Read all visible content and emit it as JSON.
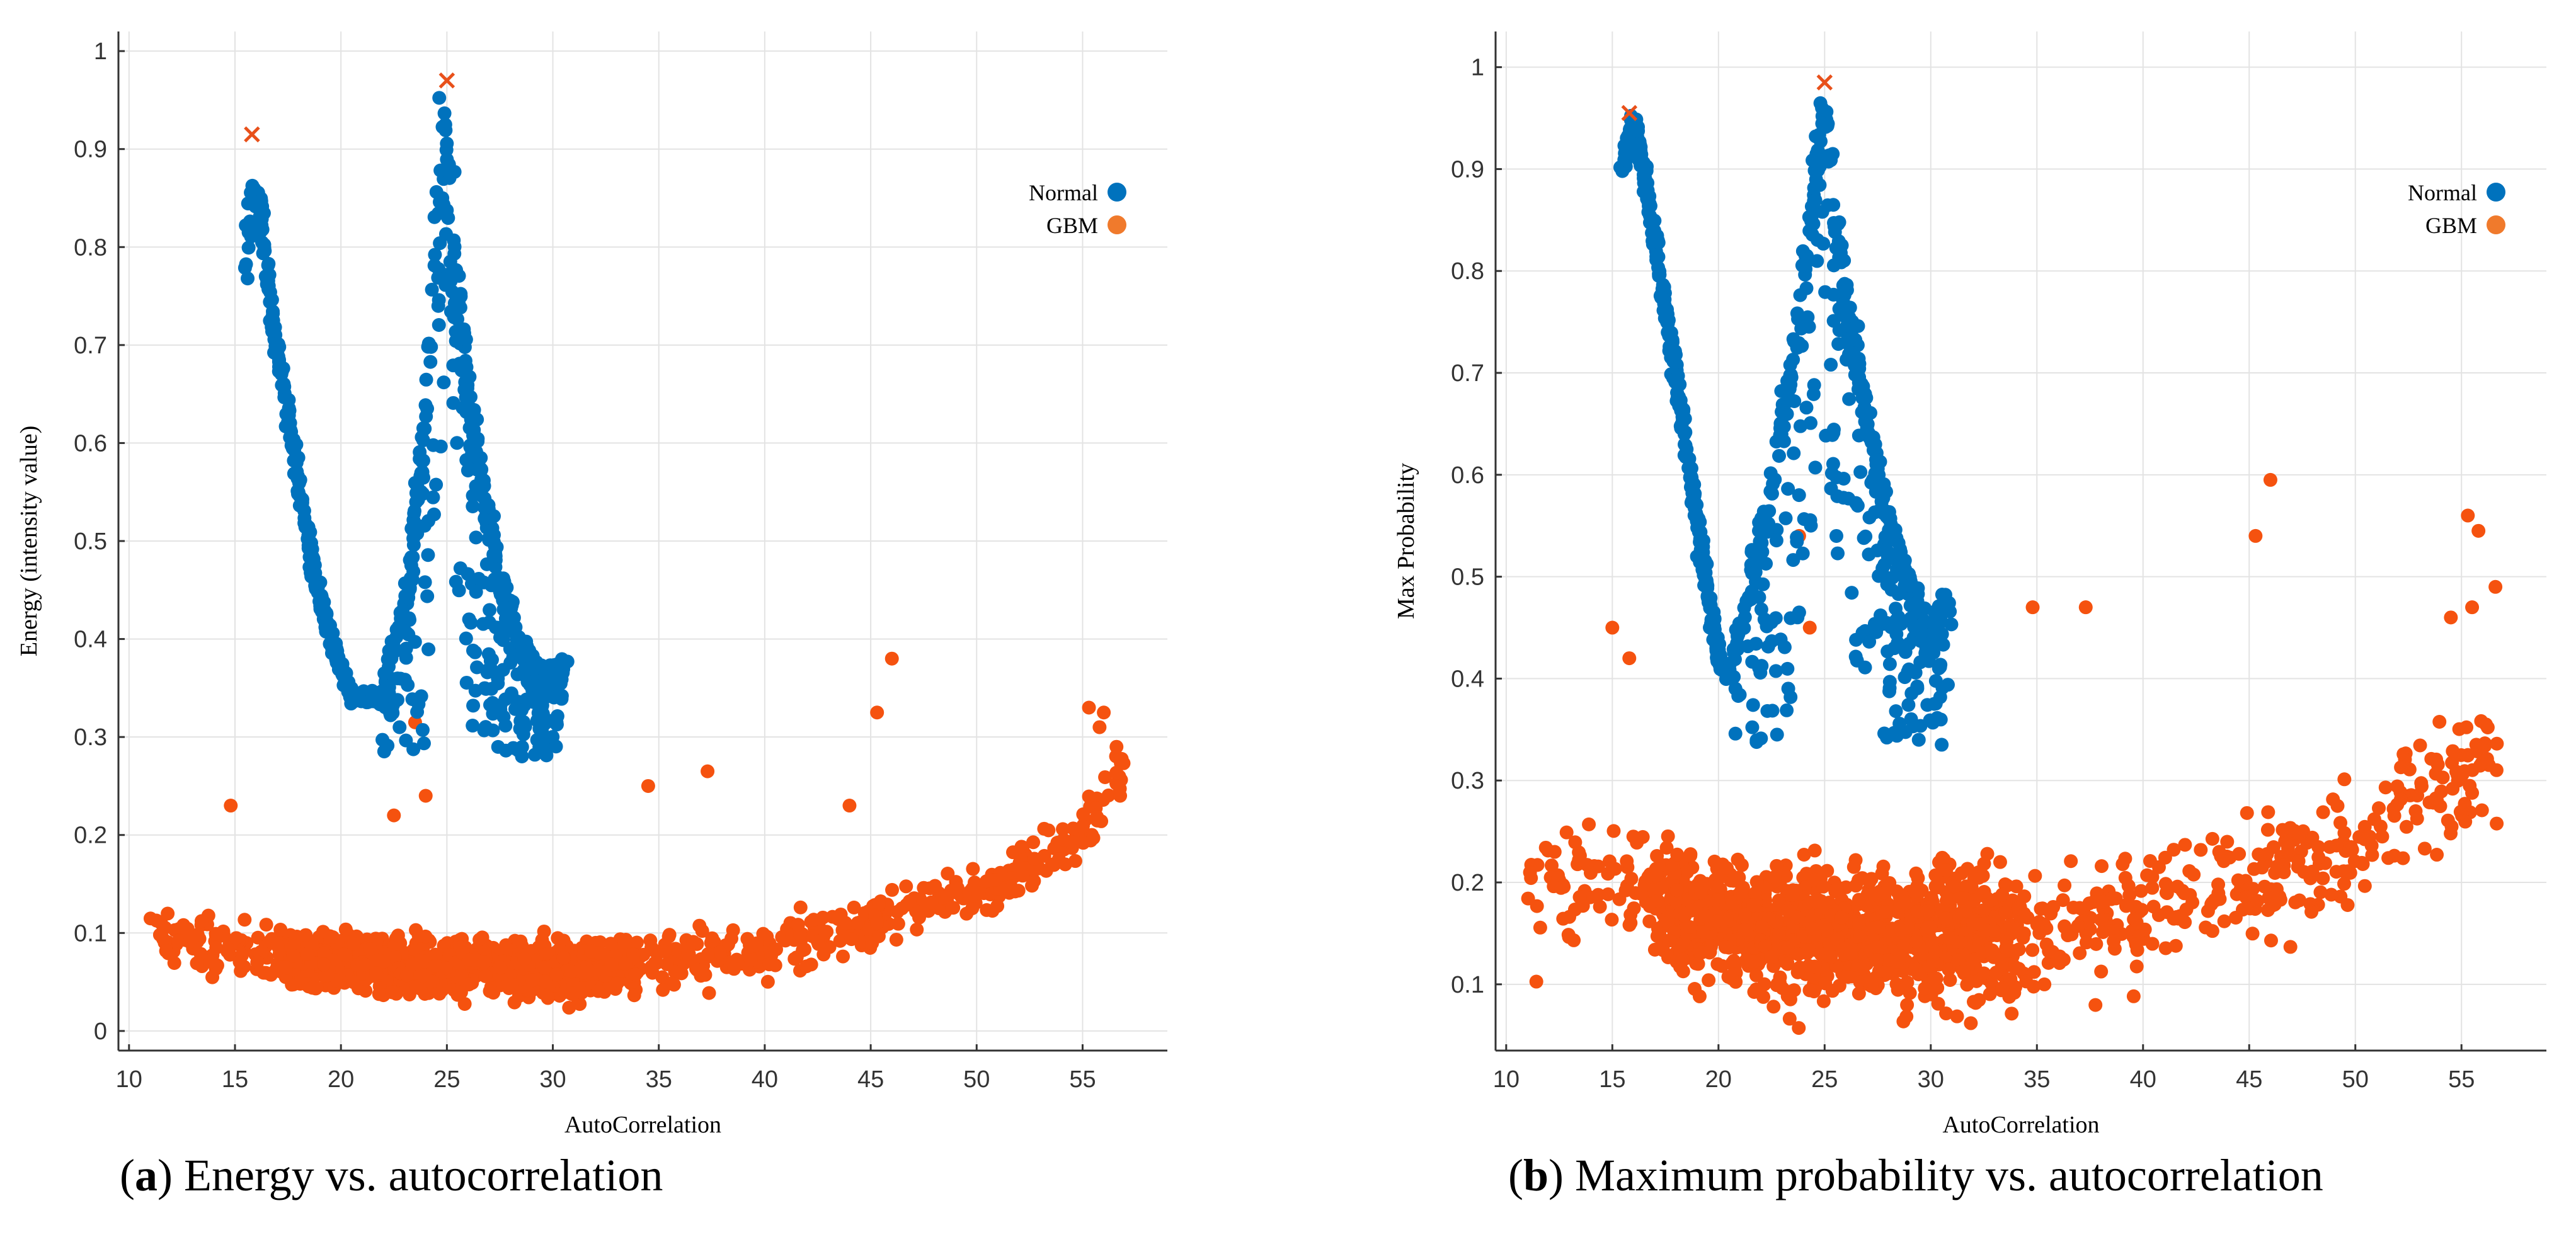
{
  "chart_data": [
    {
      "type": "scatter",
      "panel": "a",
      "xlabel": "AutoCorrelation",
      "ylabel": "Energy (intensity value)",
      "xlim": [
        9.5,
        59
      ],
      "ylim": [
        -0.02,
        1.02
      ],
      "xticks": [
        10,
        15,
        20,
        25,
        30,
        35,
        40,
        45,
        50,
        55
      ],
      "yticks": [
        0,
        0.1,
        0.2,
        0.3,
        0.4,
        0.5,
        0.6,
        0.7,
        0.8,
        0.9,
        1
      ],
      "ytick_labels": [
        "0",
        "0.1",
        "0.2",
        "0.3",
        "0.4",
        "0.5",
        "0.6",
        "0.7",
        "0.8",
        "0.9",
        "1"
      ],
      "grid": true,
      "legend_position": "top-right",
      "legend": [
        {
          "name": "Normal",
          "color": "#0072BD"
        },
        {
          "name": "GBM",
          "color": "#F07A2C"
        }
      ],
      "normal_shape": {
        "left_branch": [
          [
            15.5,
            0.76
          ],
          [
            15.8,
            0.86
          ],
          [
            16.2,
            0.84
          ],
          [
            16.8,
            0.72
          ],
          [
            17.5,
            0.63
          ],
          [
            18.2,
            0.53
          ],
          [
            19.0,
            0.44
          ],
          [
            19.8,
            0.38
          ],
          [
            20.5,
            0.34
          ],
          [
            21.5,
            0.34
          ],
          [
            22.5,
            0.33
          ]
        ],
        "peak": [
          [
            22.0,
            0.36
          ],
          [
            23.0,
            0.44
          ],
          [
            23.8,
            0.58
          ],
          [
            24.4,
            0.75
          ],
          [
            24.9,
            0.96
          ],
          [
            25.4,
            0.8
          ],
          [
            26.0,
            0.66
          ],
          [
            26.8,
            0.55
          ],
          [
            27.5,
            0.47
          ],
          [
            28.5,
            0.4
          ],
          [
            29.5,
            0.37
          ],
          [
            30.5,
            0.38
          ]
        ],
        "peak_spread": 0.3
      },
      "gbm_cloud": {
        "x_range": [
          11,
          57
        ],
        "baseline": [
          [
            11,
            0.1
          ],
          [
            15,
            0.08
          ],
          [
            20,
            0.07
          ],
          [
            25,
            0.065
          ],
          [
            30,
            0.06
          ],
          [
            35,
            0.07
          ],
          [
            40,
            0.085
          ],
          [
            45,
            0.11
          ],
          [
            50,
            0.14
          ],
          [
            53,
            0.17
          ],
          [
            55,
            0.2
          ],
          [
            57,
            0.27
          ]
        ],
        "spread": 0.035,
        "outliers": [
          [
            14.8,
            0.23
          ],
          [
            22.5,
            0.22
          ],
          [
            24,
            0.24
          ],
          [
            34.5,
            0.25
          ],
          [
            37.3,
            0.265
          ],
          [
            44,
            0.23
          ],
          [
            45.3,
            0.325
          ],
          [
            46,
            0.38
          ],
          [
            55.3,
            0.33
          ],
          [
            55.8,
            0.31
          ],
          [
            56,
            0.325
          ],
          [
            56.6,
            0.29
          ],
          [
            23.5,
            0.315
          ]
        ]
      },
      "cross_markers": [
        [
          15.8,
          0.915
        ],
        [
          25.0,
          0.97
        ]
      ]
    },
    {
      "type": "scatter",
      "panel": "b",
      "xlabel": "AutoCorrelation",
      "ylabel": "Max Probability",
      "xlim": [
        9.5,
        59
      ],
      "ylim": [
        0.035,
        1.035
      ],
      "xticks": [
        10,
        15,
        20,
        25,
        30,
        35,
        40,
        45,
        50,
        55
      ],
      "yticks": [
        0.1,
        0.2,
        0.3,
        0.4,
        0.5,
        0.6,
        0.7,
        0.8,
        0.9,
        1
      ],
      "ytick_labels": [
        "0.1",
        "0.2",
        "0.3",
        "0.4",
        "0.5",
        "0.6",
        "0.7",
        "0.8",
        "0.9",
        "1"
      ],
      "grid": true,
      "legend_position": "top-right",
      "legend": [
        {
          "name": "Normal",
          "color": "#0072BD"
        },
        {
          "name": "GBM",
          "color": "#F07A2C"
        }
      ],
      "normal_shape": {
        "left_branch": [
          [
            15.5,
            0.9
          ],
          [
            16.0,
            0.95
          ],
          [
            16.8,
            0.86
          ],
          [
            17.5,
            0.76
          ],
          [
            18.2,
            0.67
          ],
          [
            18.8,
            0.58
          ],
          [
            19.4,
            0.5
          ],
          [
            20.0,
            0.42
          ],
          [
            20.4,
            0.4
          ]
        ],
        "peak": [
          [
            20.5,
            0.41
          ],
          [
            21.5,
            0.5
          ],
          [
            22.5,
            0.6
          ],
          [
            23.5,
            0.72
          ],
          [
            24.3,
            0.84
          ],
          [
            24.9,
            0.98
          ],
          [
            25.5,
            0.86
          ],
          [
            26.3,
            0.75
          ],
          [
            27.2,
            0.64
          ],
          [
            28.0,
            0.56
          ],
          [
            29.0,
            0.5
          ],
          [
            30.0,
            0.45
          ],
          [
            30.8,
            0.49
          ]
        ],
        "peak_spread": 0.3
      },
      "gbm_cloud": {
        "x_range": [
          11,
          57
        ],
        "baseline": [
          [
            11,
            0.2
          ],
          [
            15,
            0.2
          ],
          [
            20,
            0.16
          ],
          [
            25,
            0.15
          ],
          [
            30,
            0.15
          ],
          [
            35,
            0.15
          ],
          [
            40,
            0.16
          ],
          [
            45,
            0.2
          ],
          [
            50,
            0.24
          ],
          [
            53,
            0.28
          ],
          [
            55,
            0.31
          ],
          [
            57,
            0.33
          ]
        ],
        "spread": 0.08,
        "outliers": [
          [
            15.0,
            0.45
          ],
          [
            15.8,
            0.42
          ],
          [
            23.8,
            0.54
          ],
          [
            24.3,
            0.45
          ],
          [
            34.8,
            0.47
          ],
          [
            37.3,
            0.47
          ],
          [
            45.3,
            0.54
          ],
          [
            46,
            0.595
          ],
          [
            55.3,
            0.56
          ],
          [
            55.8,
            0.545
          ],
          [
            56.6,
            0.49
          ],
          [
            55.5,
            0.47
          ],
          [
            54.5,
            0.46
          ]
        ]
      },
      "cross_markers": [
        [
          15.8,
          0.955
        ],
        [
          25.0,
          0.985
        ]
      ]
    }
  ],
  "captions": [
    {
      "label": "a",
      "text": " Energy vs. autocorrelation"
    },
    {
      "label": "b",
      "text": " Maximum probability vs. autocorrelation"
    }
  ]
}
